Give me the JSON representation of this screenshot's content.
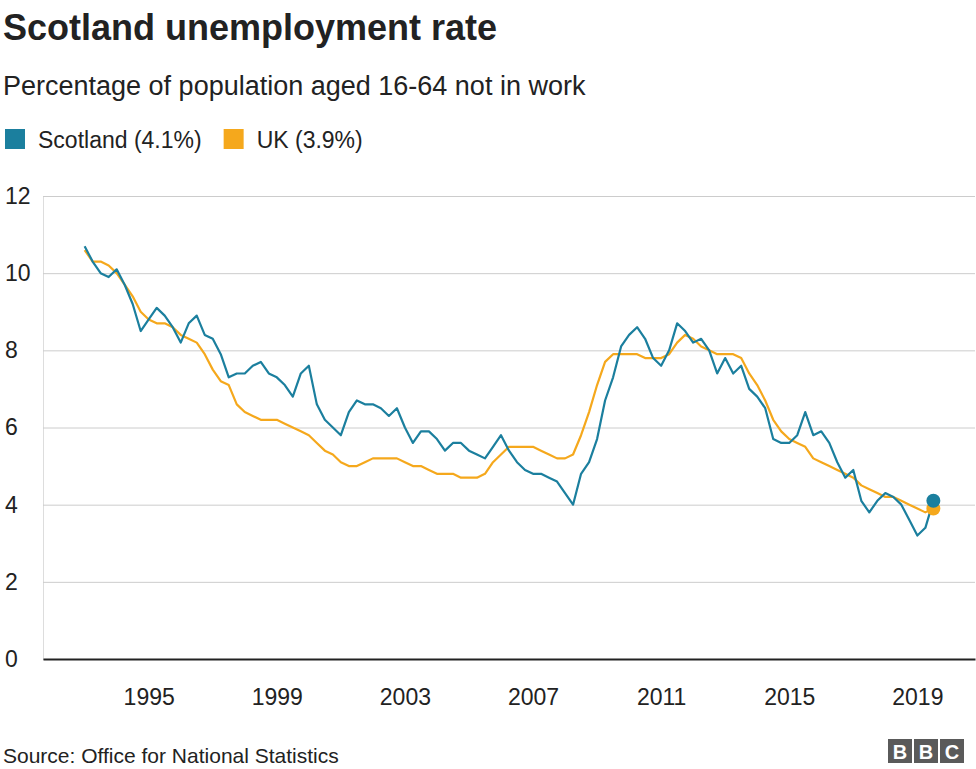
{
  "chart_data": {
    "type": "line",
    "title": "Scotland unemployment rate",
    "subtitle": "Percentage of population aged 16-64 not in work",
    "source": "Source: Office for National Statistics",
    "logo": "BBC",
    "grid": true,
    "legend": "top-left",
    "xlim": [
      1991.7,
      2020.8
    ],
    "xticks": [
      1995,
      1999,
      2003,
      2007,
      2011,
      2015,
      2019
    ],
    "ylim": [
      0,
      12
    ],
    "yticks": [
      0,
      2,
      4,
      6,
      8,
      10,
      12
    ],
    "x": [
      1993.0,
      1993.25,
      1993.5,
      1993.75,
      1994.0,
      1994.25,
      1994.5,
      1994.75,
      1995.0,
      1995.25,
      1995.5,
      1995.75,
      1996.0,
      1996.25,
      1996.5,
      1996.75,
      1997.0,
      1997.25,
      1997.5,
      1997.75,
      1998.0,
      1998.25,
      1998.5,
      1998.75,
      1999.0,
      1999.25,
      1999.5,
      1999.75,
      2000.0,
      2000.25,
      2000.5,
      2000.75,
      2001.0,
      2001.25,
      2001.5,
      2001.75,
      2002.0,
      2002.25,
      2002.5,
      2002.75,
      2003.0,
      2003.25,
      2003.5,
      2003.75,
      2004.0,
      2004.25,
      2004.5,
      2004.75,
      2005.0,
      2005.25,
      2005.5,
      2005.75,
      2006.0,
      2006.25,
      2006.5,
      2006.75,
      2007.0,
      2007.25,
      2007.5,
      2007.75,
      2008.0,
      2008.25,
      2008.5,
      2008.75,
      2009.0,
      2009.25,
      2009.5,
      2009.75,
      2010.0,
      2010.25,
      2010.5,
      2010.75,
      2011.0,
      2011.25,
      2011.5,
      2011.75,
      2012.0,
      2012.25,
      2012.5,
      2012.75,
      2013.0,
      2013.25,
      2013.5,
      2013.75,
      2014.0,
      2014.25,
      2014.5,
      2014.75,
      2015.0,
      2015.25,
      2015.5,
      2015.75,
      2016.0,
      2016.25,
      2016.5,
      2016.75,
      2017.0,
      2017.25,
      2017.5,
      2017.75,
      2018.0,
      2018.25,
      2018.5,
      2018.75,
      2019.0,
      2019.25,
      2019.5
    ],
    "series": [
      {
        "name": "Scotland (4.1%)",
        "color": "#1b7f9e",
        "marker": "end",
        "values": [
          10.7,
          10.3,
          10.0,
          9.9,
          10.1,
          9.7,
          9.2,
          8.5,
          8.8,
          9.1,
          8.9,
          8.6,
          8.2,
          8.7,
          8.9,
          8.4,
          8.3,
          7.9,
          7.3,
          7.4,
          7.4,
          7.6,
          7.7,
          7.4,
          7.3,
          7.1,
          6.8,
          7.4,
          7.6,
          6.6,
          6.2,
          6.0,
          5.8,
          6.4,
          6.7,
          6.6,
          6.6,
          6.5,
          6.3,
          6.5,
          6.0,
          5.6,
          5.9,
          5.9,
          5.7,
          5.4,
          5.6,
          5.6,
          5.4,
          5.3,
          5.2,
          5.5,
          5.8,
          5.4,
          5.1,
          4.9,
          4.8,
          4.8,
          4.7,
          4.6,
          4.3,
          4.0,
          4.8,
          5.1,
          5.7,
          6.7,
          7.3,
          8.1,
          8.4,
          8.6,
          8.3,
          7.8,
          7.6,
          8.0,
          8.7,
          8.5,
          8.2,
          8.3,
          8.0,
          7.4,
          7.8,
          7.4,
          7.6,
          7.0,
          6.8,
          6.5,
          5.7,
          5.6,
          5.6,
          5.8,
          6.4,
          5.8,
          5.9,
          5.6,
          5.1,
          4.7,
          4.9,
          4.1,
          3.8,
          4.1,
          4.3,
          4.2,
          4.0,
          3.6,
          3.2,
          3.4,
          4.1
        ]
      },
      {
        "name": "UK (3.9%)",
        "color": "#f5a81c",
        "marker": "end",
        "values": [
          10.6,
          10.3,
          10.3,
          10.2,
          10.0,
          9.7,
          9.4,
          9.0,
          8.8,
          8.7,
          8.7,
          8.6,
          8.4,
          8.3,
          8.2,
          7.9,
          7.5,
          7.2,
          7.1,
          6.6,
          6.4,
          6.3,
          6.2,
          6.2,
          6.2,
          6.1,
          6.0,
          5.9,
          5.8,
          5.6,
          5.4,
          5.3,
          5.1,
          5.0,
          5.0,
          5.1,
          5.2,
          5.2,
          5.2,
          5.2,
          5.1,
          5.0,
          5.0,
          4.9,
          4.8,
          4.8,
          4.8,
          4.7,
          4.7,
          4.7,
          4.8,
          5.1,
          5.3,
          5.5,
          5.5,
          5.5,
          5.5,
          5.4,
          5.3,
          5.2,
          5.2,
          5.3,
          5.8,
          6.4,
          7.1,
          7.7,
          7.9,
          7.9,
          7.9,
          7.9,
          7.8,
          7.8,
          7.8,
          7.9,
          8.2,
          8.4,
          8.3,
          8.1,
          8.0,
          7.9,
          7.9,
          7.9,
          7.8,
          7.4,
          7.1,
          6.7,
          6.2,
          5.9,
          5.7,
          5.6,
          5.5,
          5.2,
          5.1,
          5.0,
          4.9,
          4.8,
          4.7,
          4.5,
          4.4,
          4.3,
          4.2,
          4.2,
          4.1,
          4.0,
          3.9,
          3.8,
          3.9
        ]
      }
    ]
  }
}
